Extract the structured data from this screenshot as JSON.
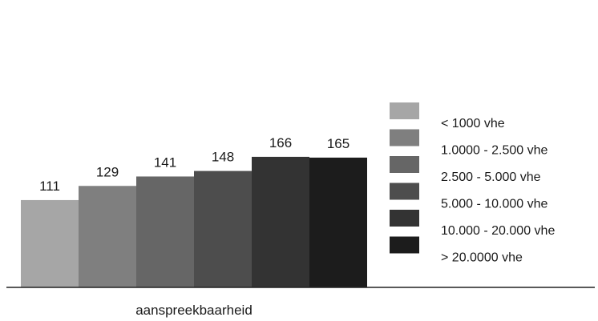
{
  "chart_data": {
    "type": "bar",
    "xlabel": "aanspreekbaarheid",
    "categories": [
      "< 1000 vhe",
      "1.0000 - 2.500 vhe",
      "2.500 - 5.000 vhe",
      "5.000 - 10.000 vhe",
      "10.000 - 20.000 vhe",
      "> 20.0000 vhe"
    ],
    "values": [
      111,
      129,
      141,
      148,
      166,
      165
    ],
    "colors": [
      "#a6a6a6",
      "#7f7f7f",
      "#666666",
      "#4d4d4d",
      "#333333",
      "#1c1c1c"
    ],
    "grid": false,
    "legend_position": "right"
  }
}
